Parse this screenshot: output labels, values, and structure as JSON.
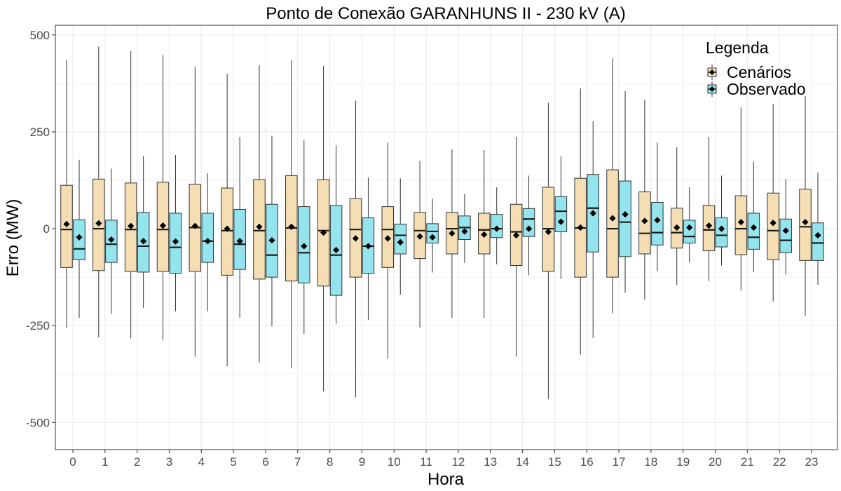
{
  "chart_data": {
    "type": "boxplot",
    "title": "Ponto de Conexão GARANHUNS II - 230 kV (A)",
    "xlabel": "Hora",
    "ylabel": "Erro (MW)",
    "categories": [
      "0",
      "1",
      "2",
      "3",
      "4",
      "5",
      "6",
      "7",
      "8",
      "9",
      "10",
      "11",
      "12",
      "13",
      "14",
      "15",
      "16",
      "17",
      "18",
      "19",
      "20",
      "21",
      "22",
      "23"
    ],
    "y_ticks": [
      500,
      250,
      0,
      -250,
      -500
    ],
    "y_tick_labels": [
      "500",
      "250",
      "0",
      "-250",
      "-500"
    ],
    "ylim": [
      -570,
      525
    ],
    "grid": true,
    "legend": {
      "title": "Legenda",
      "position": "top-right"
    },
    "series": [
      {
        "name": "Cenários",
        "color": "#f5deb3",
        "boxes": [
          {
            "min": -255,
            "q1": -100,
            "median": -2,
            "q3": 112,
            "max": 435,
            "mean": 12
          },
          {
            "min": -280,
            "q1": -108,
            "median": 0,
            "q3": 128,
            "max": 470,
            "mean": 14
          },
          {
            "min": -283,
            "q1": -110,
            "median": -2,
            "q3": 118,
            "max": 458,
            "mean": 7
          },
          {
            "min": -288,
            "q1": -110,
            "median": -2,
            "q3": 120,
            "max": 448,
            "mean": 8
          },
          {
            "min": -330,
            "q1": -110,
            "median": 3,
            "q3": 115,
            "max": 418,
            "mean": 7
          },
          {
            "min": -355,
            "q1": -120,
            "median": -5,
            "q3": 105,
            "max": 400,
            "mean": 0
          },
          {
            "min": -345,
            "q1": -130,
            "median": -5,
            "q3": 127,
            "max": 422,
            "mean": 5
          },
          {
            "min": -360,
            "q1": -135,
            "median": 2,
            "q3": 137,
            "max": 435,
            "mean": 5
          },
          {
            "min": -420,
            "q1": -148,
            "median": -5,
            "q3": 127,
            "max": 420,
            "mean": -10
          },
          {
            "min": -435,
            "q1": -125,
            "median": -2,
            "q3": 78,
            "max": 330,
            "mean": -25
          },
          {
            "min": -335,
            "q1": -100,
            "median": -2,
            "q3": 57,
            "max": 222,
            "mean": -25
          },
          {
            "min": -255,
            "q1": -77,
            "median": -5,
            "q3": 42,
            "max": 175,
            "mean": -20
          },
          {
            "min": -230,
            "q1": -65,
            "median": 0,
            "q3": 42,
            "max": 205,
            "mean": -12
          },
          {
            "min": -230,
            "q1": -65,
            "median": -3,
            "q3": 40,
            "max": 203,
            "mean": -15
          },
          {
            "min": -330,
            "q1": -95,
            "median": -8,
            "q3": 63,
            "max": 237,
            "mean": -17
          },
          {
            "min": -440,
            "q1": -110,
            "median": 0,
            "q3": 107,
            "max": 325,
            "mean": -8
          },
          {
            "min": -325,
            "q1": -125,
            "median": 2,
            "q3": 130,
            "max": 362,
            "mean": 3
          },
          {
            "min": -218,
            "q1": -125,
            "median": 0,
            "q3": 152,
            "max": 440,
            "mean": 27
          },
          {
            "min": -183,
            "q1": -65,
            "median": -12,
            "q3": 95,
            "max": 333,
            "mean": 20
          },
          {
            "min": -145,
            "q1": -50,
            "median": -10,
            "q3": 53,
            "max": 210,
            "mean": 3
          },
          {
            "min": -135,
            "q1": -57,
            "median": -3,
            "q3": 60,
            "max": 237,
            "mean": 8
          },
          {
            "min": -160,
            "q1": -67,
            "median": 0,
            "q3": 85,
            "max": 313,
            "mean": 17
          },
          {
            "min": -188,
            "q1": -80,
            "median": -5,
            "q3": 92,
            "max": 322,
            "mean": 15
          },
          {
            "min": -225,
            "q1": -82,
            "median": 5,
            "q3": 102,
            "max": 342,
            "mean": 17
          }
        ]
      },
      {
        "name": "Observado",
        "color": "#94e4ee",
        "boxes": [
          {
            "min": -230,
            "q1": -80,
            "median": -52,
            "q3": 23,
            "max": 178,
            "mean": -22
          },
          {
            "min": -220,
            "q1": -87,
            "median": -40,
            "q3": 22,
            "max": 155,
            "mean": -28
          },
          {
            "min": -205,
            "q1": -112,
            "median": -45,
            "q3": 42,
            "max": 188,
            "mean": -32
          },
          {
            "min": -213,
            "q1": -115,
            "median": -48,
            "q3": 40,
            "max": 190,
            "mean": -33
          },
          {
            "min": -213,
            "q1": -87,
            "median": -32,
            "q3": 40,
            "max": 143,
            "mean": -32
          },
          {
            "min": -230,
            "q1": -105,
            "median": -40,
            "q3": 50,
            "max": 237,
            "mean": -32
          },
          {
            "min": -252,
            "q1": -125,
            "median": -68,
            "q3": 63,
            "max": 240,
            "mean": -30
          },
          {
            "min": -272,
            "q1": -140,
            "median": -62,
            "q3": 57,
            "max": 228,
            "mean": -45
          },
          {
            "min": -245,
            "q1": -172,
            "median": -68,
            "q3": 60,
            "max": 215,
            "mean": -55
          },
          {
            "min": -235,
            "q1": -115,
            "median": -45,
            "q3": 28,
            "max": 132,
            "mean": -45
          },
          {
            "min": -170,
            "q1": -65,
            "median": -17,
            "q3": 12,
            "max": 130,
            "mean": -35
          },
          {
            "min": -113,
            "q1": -37,
            "median": -7,
            "q3": 13,
            "max": 77,
            "mean": -22
          },
          {
            "min": -88,
            "q1": -28,
            "median": 3,
            "q3": 33,
            "max": 90,
            "mean": -7
          },
          {
            "min": -92,
            "q1": -23,
            "median": 0,
            "q3": 37,
            "max": 107,
            "mean": 0
          },
          {
            "min": -120,
            "q1": -20,
            "median": 25,
            "q3": 52,
            "max": 137,
            "mean": 0
          },
          {
            "min": -130,
            "q1": -8,
            "median": 45,
            "q3": 83,
            "max": 187,
            "mean": 18
          },
          {
            "min": -282,
            "q1": -60,
            "median": 53,
            "q3": 140,
            "max": 277,
            "mean": 40
          },
          {
            "min": -165,
            "q1": -72,
            "median": 17,
            "q3": 123,
            "max": 355,
            "mean": 37
          },
          {
            "min": -110,
            "q1": -42,
            "median": -10,
            "q3": 68,
            "max": 222,
            "mean": 22
          },
          {
            "min": -87,
            "q1": -37,
            "median": -20,
            "q3": 22,
            "max": 107,
            "mean": 3
          },
          {
            "min": -95,
            "q1": -47,
            "median": -17,
            "q3": 28,
            "max": 137,
            "mean": 0
          },
          {
            "min": -112,
            "q1": -53,
            "median": -22,
            "q3": 40,
            "max": 173,
            "mean": 3
          },
          {
            "min": -118,
            "q1": -62,
            "median": -30,
            "q3": 25,
            "max": 128,
            "mean": -5
          },
          {
            "min": -145,
            "q1": -82,
            "median": -37,
            "q3": 15,
            "max": 145,
            "mean": -17
          }
        ]
      }
    ]
  }
}
